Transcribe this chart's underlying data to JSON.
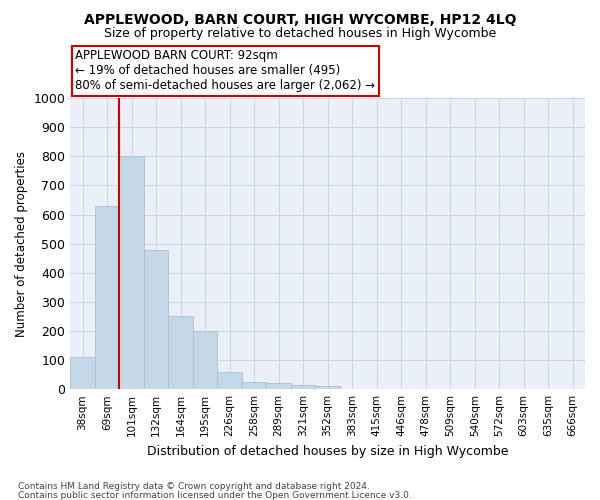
{
  "title": "APPLEWOOD, BARN COURT, HIGH WYCOMBE, HP12 4LQ",
  "subtitle": "Size of property relative to detached houses in High Wycombe",
  "xlabel": "Distribution of detached houses by size in High Wycombe",
  "ylabel": "Number of detached properties",
  "bin_labels": [
    "38sqm",
    "69sqm",
    "101sqm",
    "132sqm",
    "164sqm",
    "195sqm",
    "226sqm",
    "258sqm",
    "289sqm",
    "321sqm",
    "352sqm",
    "383sqm",
    "415sqm",
    "446sqm",
    "478sqm",
    "509sqm",
    "540sqm",
    "572sqm",
    "603sqm",
    "635sqm",
    "666sqm"
  ],
  "bar_values": [
    110,
    630,
    800,
    480,
    250,
    200,
    60,
    25,
    20,
    15,
    10,
    0,
    0,
    0,
    0,
    0,
    0,
    0,
    0,
    0,
    0
  ],
  "bar_color": "#c5d8e8",
  "bar_edge_color": "#aabfd6",
  "vline_bin_index": 2,
  "vline_color": "#cc0000",
  "annotation_line1": "APPLEWOOD BARN COURT: 92sqm",
  "annotation_line2": "← 19% of detached houses are smaller (495)",
  "annotation_line3": "80% of semi-detached houses are larger (2,062) →",
  "annotation_box_color": "#ffffff",
  "annotation_box_edge": "#cc0000",
  "ylim": [
    0,
    1000
  ],
  "yticks": [
    0,
    100,
    200,
    300,
    400,
    500,
    600,
    700,
    800,
    900,
    1000
  ],
  "grid_color": "#c8d4e4",
  "background_color": "#eaeff8",
  "footnote1": "Contains HM Land Registry data © Crown copyright and database right 2024.",
  "footnote2": "Contains public sector information licensed under the Open Government Licence v3.0."
}
